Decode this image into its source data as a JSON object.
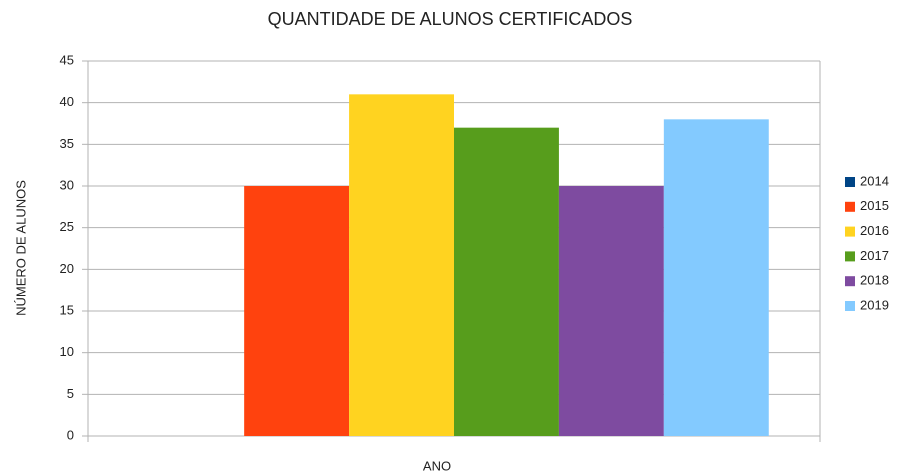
{
  "chart_data": {
    "type": "bar",
    "title": "QUANTIDADE DE ALUNOS CERTIFICADOS",
    "x_label": "ANO",
    "y_label": "NÚMERO DE ALUNOS",
    "categories": [
      null
    ],
    "series": [
      {
        "name": "2014",
        "color": "#004586",
        "values": [
          0
        ]
      },
      {
        "name": "2015",
        "color": "#ff420e",
        "values": [
          30
        ]
      },
      {
        "name": "2016",
        "color": "#ffd320",
        "values": [
          41
        ]
      },
      {
        "name": "2017",
        "color": "#579d1c",
        "values": [
          37
        ]
      },
      {
        "name": "2018",
        "color": "#7e4ba0",
        "values": [
          30
        ]
      },
      {
        "name": "2019",
        "color": "#83caff",
        "values": [
          38
        ]
      }
    ],
    "ylim": [
      0,
      45
    ],
    "yticks": [
      0,
      5,
      10,
      15,
      20,
      25,
      30,
      35,
      40,
      45
    ],
    "grid": true,
    "legend": "right"
  }
}
